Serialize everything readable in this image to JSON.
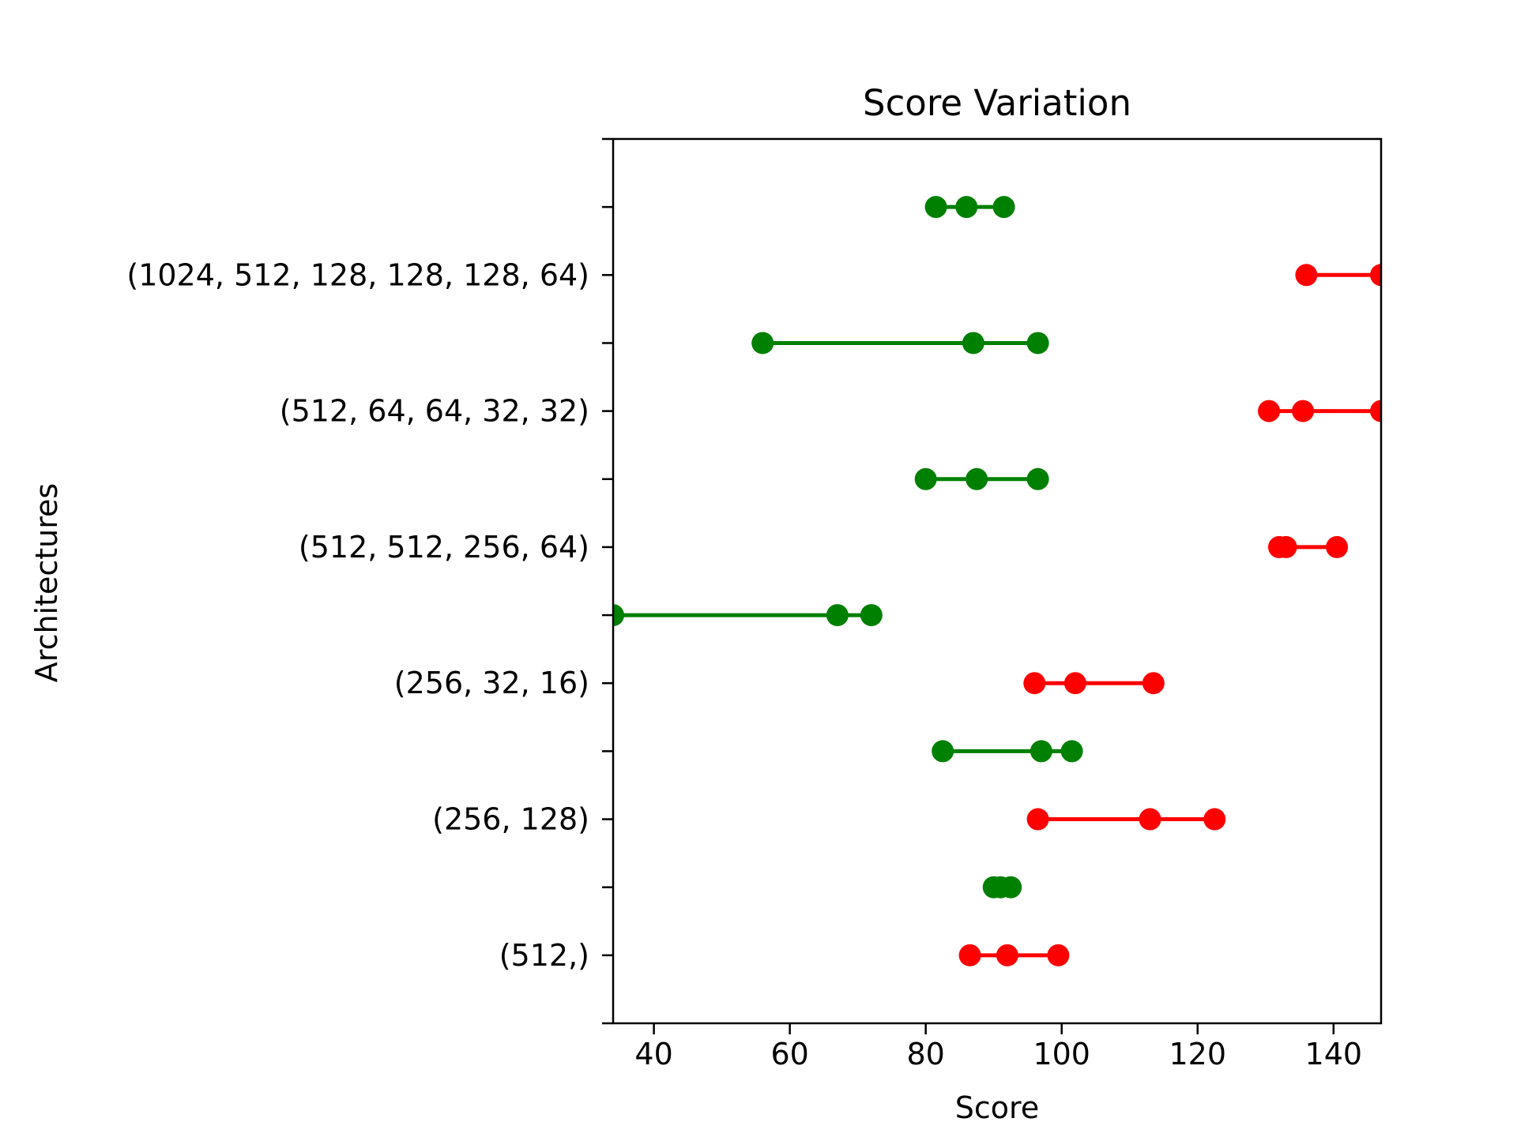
{
  "chart_data": {
    "type": "scatter",
    "title": "Score Variation",
    "xlabel": "Score",
    "ylabel": "Architectures",
    "xlim": [
      34,
      147
    ],
    "xticks": [
      40,
      60,
      80,
      100,
      120,
      140
    ],
    "categories": [
      "(512,)",
      "(256, 128)",
      "(256, 32, 16)",
      "(512, 512, 256, 64)",
      "(512, 64, 64, 32, 32)",
      "(1024, 512, 128, 128, 128, 64)"
    ],
    "minor_tick_count": 13,
    "grid": false,
    "series": [
      {
        "color": "#ff0000",
        "rows": [
          {
            "values": [
              86.5,
              92.0,
              99.5
            ]
          },
          {
            "values": [
              96.5,
              113.0,
              122.5
            ]
          },
          {
            "values": [
              96.0,
              102.0,
              113.5
            ]
          },
          {
            "values": [
              132.0,
              133.0,
              140.5
            ]
          },
          {
            "values": [
              130.5,
              135.5,
              147.0
            ]
          },
          {
            "values": [
              136.0,
              147.0
            ]
          }
        ]
      },
      {
        "color": "#008000",
        "rows": [
          {
            "values": [
              90.0,
              91.0,
              92.5
            ]
          },
          {
            "values": [
              82.5,
              97.0,
              101.5
            ]
          },
          {
            "values": [
              34.0,
              67.0,
              72.0
            ]
          },
          {
            "values": [
              80.0,
              87.5,
              96.5
            ]
          },
          {
            "values": [
              56.0,
              87.0,
              96.5
            ]
          },
          {
            "values": [
              81.5,
              86.0,
              91.5
            ]
          }
        ]
      }
    ]
  }
}
